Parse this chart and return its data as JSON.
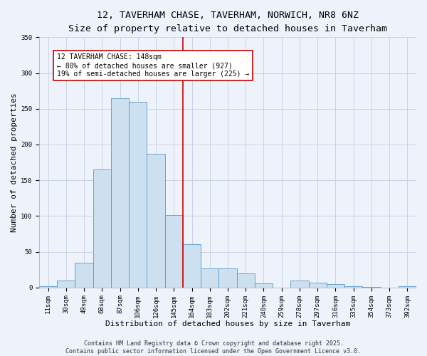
{
  "title": "12, TAVERHAM CHASE, TAVERHAM, NORWICH, NR8 6NZ",
  "subtitle": "Size of property relative to detached houses in Taverham",
  "xlabel": "Distribution of detached houses by size in Taverham",
  "ylabel": "Number of detached properties",
  "categories": [
    "11sqm",
    "30sqm",
    "49sqm",
    "68sqm",
    "87sqm",
    "106sqm",
    "126sqm",
    "145sqm",
    "164sqm",
    "183sqm",
    "202sqm",
    "221sqm",
    "240sqm",
    "259sqm",
    "278sqm",
    "297sqm",
    "316sqm",
    "335sqm",
    "354sqm",
    "373sqm",
    "392sqm"
  ],
  "values": [
    2,
    10,
    35,
    165,
    265,
    260,
    187,
    101,
    61,
    27,
    27,
    20,
    6,
    0,
    10,
    7,
    5,
    2,
    1,
    0,
    2
  ],
  "bar_color": "#cce0f0",
  "bar_edge_color": "#5599cc",
  "grid_color": "#c8d4e8",
  "background_color": "#eef2fa",
  "vline_x": 7.5,
  "vline_color": "#cc0000",
  "annotation_text": "12 TAVERHAM CHASE: 148sqm\n← 80% of detached houses are smaller (927)\n19% of semi-detached houses are larger (225) →",
  "annotation_box_color": "#ffffff",
  "annotation_box_edge": "#cc0000",
  "footnote": "Contains HM Land Registry data © Crown copyright and database right 2025.\nContains public sector information licensed under the Open Government Licence v3.0.",
  "ylim": [
    0,
    350
  ],
  "yticks": [
    0,
    50,
    100,
    150,
    200,
    250,
    300,
    350
  ],
  "title_fontsize": 9.5,
  "subtitle_fontsize": 8.5,
  "xlabel_fontsize": 8,
  "ylabel_fontsize": 8,
  "tick_fontsize": 6.5,
  "annot_fontsize": 7,
  "footnote_fontsize": 6
}
